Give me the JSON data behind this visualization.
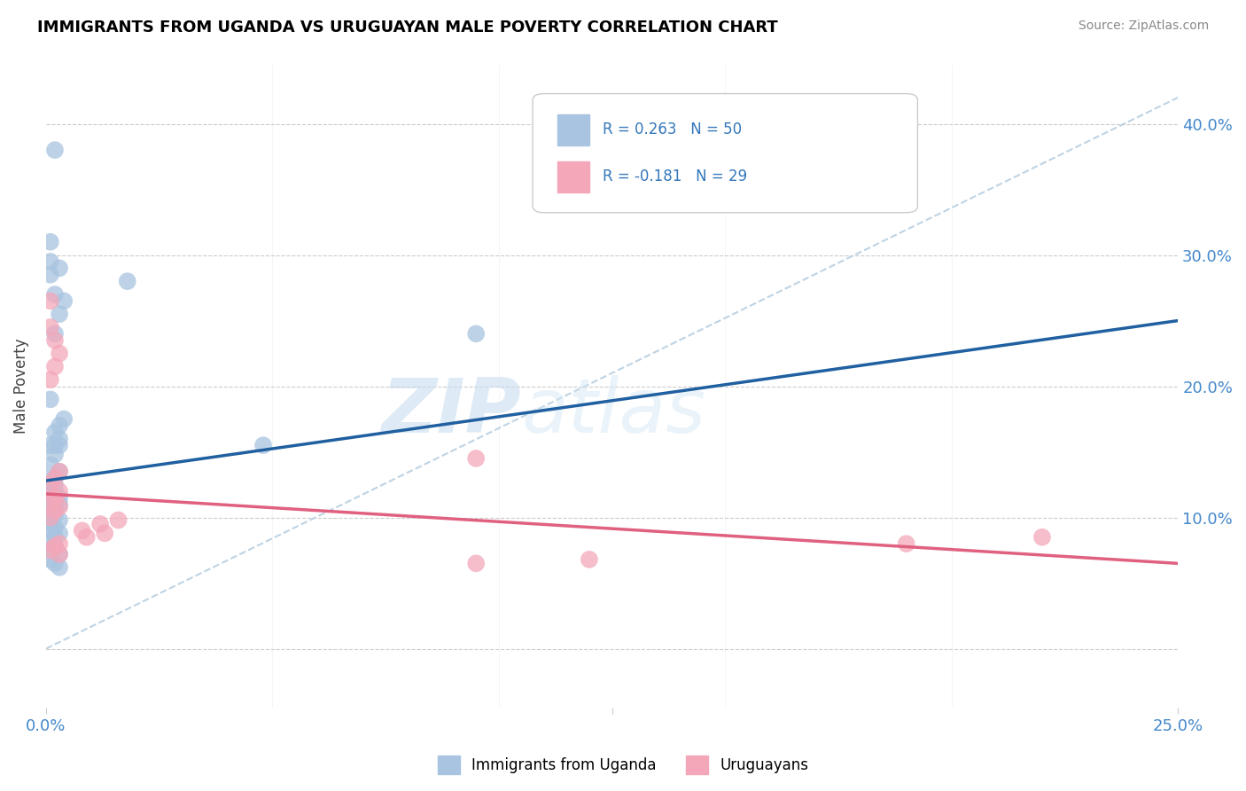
{
  "title": "IMMIGRANTS FROM UGANDA VS URUGUAYAN MALE POVERTY CORRELATION CHART",
  "source": "Source: ZipAtlas.com",
  "ylabel": "Male Poverty",
  "yticks": [
    0.0,
    0.1,
    0.2,
    0.3,
    0.4
  ],
  "ytick_labels": [
    "",
    "10.0%",
    "20.0%",
    "30.0%",
    "40.0%"
  ],
  "xlim": [
    0.0,
    0.25
  ],
  "ylim": [
    -0.045,
    0.445
  ],
  "r_uganda": 0.263,
  "n_uganda": 50,
  "r_uruguayan": -0.181,
  "n_uruguayan": 29,
  "color_uganda": "#a8c4e0",
  "color_uruguayan": "#f4a7b9",
  "line_color_uganda": "#2060a0",
  "line_color_uruguayan": "#e06080",
  "diag_line_color": "#b8cfe0",
  "watermark_zip": "ZIP",
  "watermark_atlas": "atlas",
  "uganda_x": [
    0.002,
    0.018,
    0.001,
    0.001,
    0.002,
    0.001,
    0.003,
    0.004,
    0.003,
    0.002,
    0.001,
    0.004,
    0.003,
    0.002,
    0.003,
    0.002,
    0.001,
    0.003,
    0.002,
    0.001,
    0.003,
    0.002,
    0.001,
    0.002,
    0.001,
    0.002,
    0.001,
    0.003,
    0.002,
    0.001,
    0.003,
    0.002,
    0.001,
    0.002,
    0.001,
    0.003,
    0.001,
    0.002,
    0.001,
    0.003,
    0.002,
    0.001,
    0.002,
    0.001,
    0.003,
    0.048,
    0.095,
    0.001,
    0.002,
    0.003
  ],
  "uganda_y": [
    0.38,
    0.28,
    0.295,
    0.31,
    0.27,
    0.285,
    0.29,
    0.265,
    0.255,
    0.24,
    0.19,
    0.175,
    0.17,
    0.165,
    0.16,
    0.155,
    0.155,
    0.155,
    0.148,
    0.14,
    0.135,
    0.13,
    0.128,
    0.125,
    0.122,
    0.12,
    0.118,
    0.115,
    0.115,
    0.112,
    0.11,
    0.108,
    0.105,
    0.102,
    0.1,
    0.098,
    0.095,
    0.092,
    0.09,
    0.088,
    0.085,
    0.082,
    0.078,
    0.075,
    0.072,
    0.155,
    0.24,
    0.068,
    0.065,
    0.062
  ],
  "uruguayan_x": [
    0.001,
    0.001,
    0.002,
    0.003,
    0.002,
    0.001,
    0.003,
    0.002,
    0.001,
    0.003,
    0.002,
    0.001,
    0.003,
    0.002,
    0.001,
    0.016,
    0.012,
    0.008,
    0.013,
    0.009,
    0.095,
    0.003,
    0.002,
    0.001,
    0.003,
    0.12,
    0.095,
    0.19,
    0.22
  ],
  "uruguayan_y": [
    0.265,
    0.245,
    0.235,
    0.225,
    0.215,
    0.205,
    0.135,
    0.13,
    0.125,
    0.12,
    0.115,
    0.112,
    0.108,
    0.105,
    0.1,
    0.098,
    0.095,
    0.09,
    0.088,
    0.085,
    0.145,
    0.08,
    0.078,
    0.075,
    0.072,
    0.068,
    0.065,
    0.08,
    0.085
  ],
  "line_uganda_x0": 0.0,
  "line_uganda_y0": 0.128,
  "line_uganda_x1": 0.25,
  "line_uganda_y1": 0.25,
  "line_uru_x0": 0.0,
  "line_uru_y0": 0.118,
  "line_uru_x1": 0.25,
  "line_uru_y1": 0.065
}
